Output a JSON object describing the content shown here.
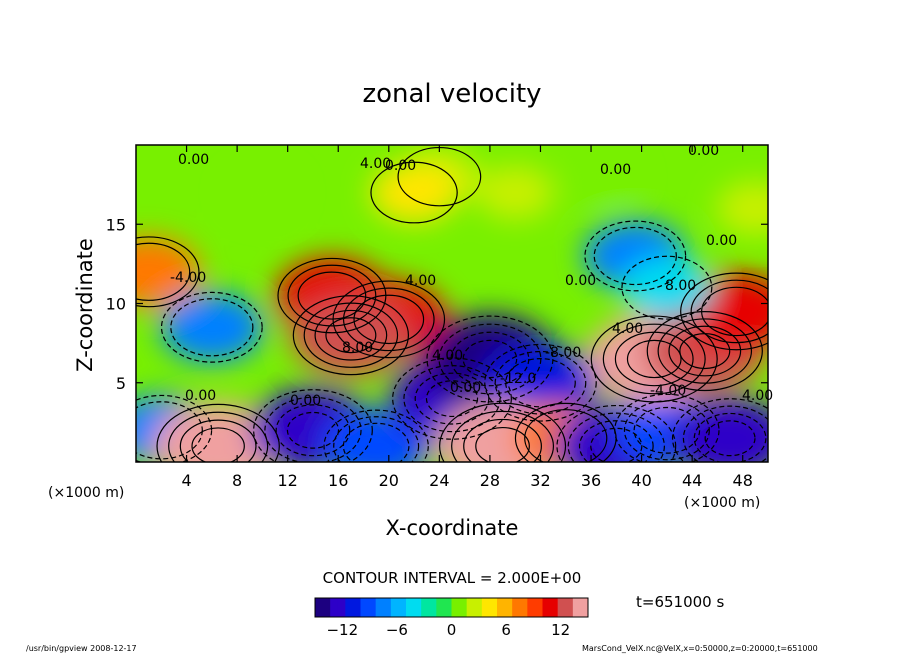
{
  "chart_data": {
    "type": "heatmap",
    "title": "zonal velocity",
    "xlabel": "X-coordinate",
    "ylabel": "Z-coordinate",
    "x_unit": "(×1000 m)",
    "z_unit": "(×1000 m)",
    "xlim": [
      0,
      50
    ],
    "zlim": [
      0,
      20
    ],
    "x_ticks": [
      "4",
      "8",
      "12",
      "16",
      "20",
      "24",
      "28",
      "32",
      "36",
      "40",
      "44",
      "48"
    ],
    "z_ticks": [
      "5",
      "10",
      "15"
    ],
    "contour_interval_text": "CONTOUR INTERVAL = 2.000E+00",
    "contour_labels": [
      "0.00",
      "0.00",
      "0.00",
      "0.00",
      "0.00",
      "0.00",
      "0.00",
      "0.00",
      "4.00",
      "4.00",
      "4.00",
      "4.00",
      "4.00",
      "8.00",
      "8.00",
      "-4.00",
      "-4.00",
      "-12.0",
      "-8.00",
      "0.00"
    ],
    "colorbar": {
      "min": -15,
      "max": 15,
      "ticks": [
        "-12",
        "-6",
        "0",
        "6",
        "12"
      ]
    },
    "time_label": "t=651000 s",
    "field_blobs": [
      {
        "x": 15.5,
        "z": 10.5,
        "value": 10
      },
      {
        "x": 20,
        "z": 9,
        "value": 11
      },
      {
        "x": 17,
        "z": 8,
        "value": 12
      },
      {
        "x": 6,
        "z": 8.5,
        "value": -8
      },
      {
        "x": 2,
        "z": 2,
        "value": -8
      },
      {
        "x": 6.5,
        "z": 1,
        "value": 14
      },
      {
        "x": 14,
        "z": 2,
        "value": -13
      },
      {
        "x": 19,
        "z": 1,
        "value": -9
      },
      {
        "x": 25,
        "z": 4,
        "value": -13
      },
      {
        "x": 28,
        "z": 6.5,
        "value": -15
      },
      {
        "x": 32,
        "z": 5,
        "value": -11
      },
      {
        "x": 29,
        "z": 1,
        "value": 15
      },
      {
        "x": 34,
        "z": 1.5,
        "value": 8
      },
      {
        "x": 38,
        "z": 1,
        "value": -13
      },
      {
        "x": 42,
        "z": 2,
        "value": -9
      },
      {
        "x": 47,
        "z": 1.5,
        "value": -12
      },
      {
        "x": 41,
        "z": 6.5,
        "value": 15
      },
      {
        "x": 45,
        "z": 7,
        "value": 12
      },
      {
        "x": 47.5,
        "z": 9.5,
        "value": 11
      },
      {
        "x": 39.5,
        "z": 13,
        "value": -8
      },
      {
        "x": 42,
        "z": 11,
        "value": -5
      },
      {
        "x": 1,
        "z": 12,
        "value": 8
      },
      {
        "x": 24,
        "z": 18,
        "value": 3
      },
      {
        "x": 22,
        "z": 17,
        "value": 4
      },
      {
        "x": 30,
        "z": 17,
        "value": 2
      },
      {
        "x": 37,
        "z": 18,
        "value": 1
      },
      {
        "x": 49,
        "z": 16,
        "value": 2
      },
      {
        "x": 10,
        "z": 17,
        "value": 1
      }
    ]
  },
  "footer": {
    "left": "/usr/bin/gpview   2008-12-17",
    "right": "MarsCond_VelX.nc@VelX,x=0:50000,z=0:20000,t=651000"
  },
  "colors": {
    "palette": [
      "#1c0080",
      "#2d00c8",
      "#0018e0",
      "#0048ff",
      "#0080ff",
      "#00b4ff",
      "#00dcf0",
      "#00e6a0",
      "#20e650",
      "#78f000",
      "#c8f000",
      "#ffe600",
      "#ffb400",
      "#ff7800",
      "#ff3c00",
      "#e60000",
      "#d05050",
      "#f0a0a0"
    ]
  }
}
